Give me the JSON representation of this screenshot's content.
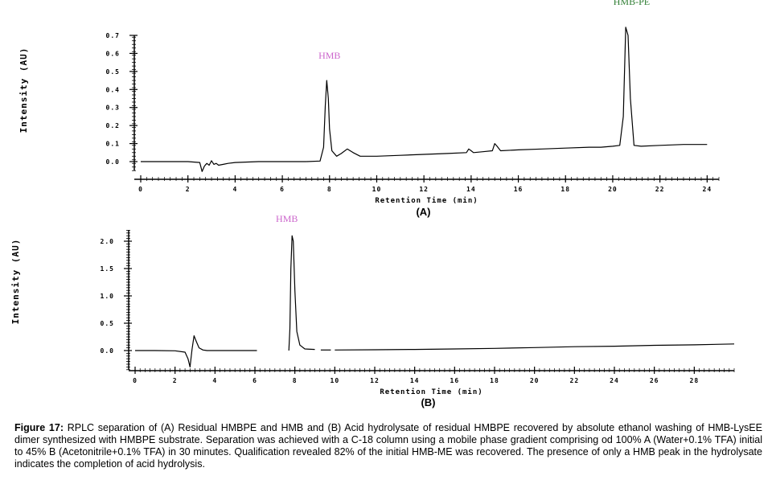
{
  "chart_data": [
    {
      "type": "line",
      "panel_label": "(A)",
      "xlabel": "Retention Time (min)",
      "ylabel": "Intensity (AU)",
      "xlim": [
        0,
        24.5
      ],
      "ylim": [
        -0.05,
        0.8
      ],
      "xticks": [
        0,
        2,
        4,
        6,
        8,
        10,
        12,
        14,
        16,
        18,
        20,
        22,
        24
      ],
      "yticks": [
        0.0,
        0.1,
        0.2,
        0.3,
        0.4,
        0.5,
        0.6,
        0.7
      ],
      "ytick_labels": [
        "0.0",
        "0.1",
        "0.2",
        "0.3",
        "0.4",
        "0.5",
        "0.6",
        "0.7"
      ],
      "line_color": "#000000",
      "series": [
        {
          "x": [
            0,
            1,
            2,
            2.5,
            2.6,
            2.7,
            2.8,
            2.9,
            3.0,
            3.1,
            3.2,
            3.3,
            3.5,
            3.7,
            4,
            5,
            6,
            7,
            7.6,
            7.75,
            7.82,
            7.88,
            7.95,
            8.0,
            8.1,
            8.3,
            8.5,
            8.75,
            9.0,
            9.3,
            10,
            11,
            12,
            13,
            13.8,
            13.9,
            14.0,
            14.1,
            14.5,
            14.9,
            15.0,
            15.1,
            15.25,
            16,
            17,
            18,
            19,
            19.5,
            20,
            20.3,
            20.45,
            20.55,
            20.65,
            20.75,
            20.9,
            21.2,
            22,
            23,
            24
          ],
          "y": [
            0.0,
            0.0,
            0.0,
            -0.005,
            -0.055,
            -0.025,
            -0.01,
            -0.02,
            0.005,
            -0.015,
            -0.01,
            -0.02,
            -0.015,
            -0.01,
            -0.005,
            0.0,
            0.0,
            0.0,
            0.003,
            0.08,
            0.31,
            0.45,
            0.35,
            0.18,
            0.06,
            0.03,
            0.045,
            0.07,
            0.05,
            0.03,
            0.03,
            0.035,
            0.04,
            0.045,
            0.05,
            0.07,
            0.06,
            0.05,
            0.055,
            0.06,
            0.1,
            0.085,
            0.06,
            0.065,
            0.07,
            0.075,
            0.08,
            0.08,
            0.085,
            0.09,
            0.25,
            0.745,
            0.7,
            0.35,
            0.09,
            0.085,
            0.09,
            0.095,
            0.095
          ]
        }
      ],
      "annotations": [
        {
          "text": "HMB",
          "x": 8.0,
          "y": 0.57,
          "color": "#cc66cc"
        },
        {
          "text": "HMB-PE",
          "x": 20.8,
          "y": 0.87,
          "color": "#2e7d32"
        }
      ]
    },
    {
      "type": "line",
      "panel_label": "(B)",
      "xlabel": "Retention Time (min)",
      "ylabel": "Intensity (AU)",
      "xlim": [
        0,
        30
      ],
      "ylim": [
        -0.35,
        2.3
      ],
      "xticks": [
        0,
        2,
        4,
        6,
        8,
        10,
        12,
        14,
        16,
        18,
        20,
        22,
        24,
        26,
        28
      ],
      "yticks": [
        0.0,
        0.5,
        1.0,
        1.5,
        2.0
      ],
      "ytick_labels": [
        "0.0",
        "0.5",
        "1.0",
        "1.5",
        "2.0"
      ],
      "line_color": "#000000",
      "series": [
        {
          "x": [
            0,
            1,
            2,
            2.5,
            2.65,
            2.75,
            2.85,
            2.95,
            3.05,
            3.2,
            3.4,
            3.6,
            4,
            5,
            6.1
          ],
          "y": [
            0.0,
            0.0,
            -0.005,
            -0.03,
            -0.15,
            -0.3,
            0.02,
            0.27,
            0.18,
            0.05,
            0.01,
            0.0,
            0.0,
            0.0,
            0.0
          ]
        },
        {
          "x": [
            7.7,
            7.75,
            7.8,
            7.86,
            7.92,
            8.0,
            8.1,
            8.25,
            8.5,
            9.0
          ],
          "y": [
            0.0,
            0.4,
            1.5,
            2.1,
            2.0,
            1.1,
            0.35,
            0.1,
            0.03,
            0.02
          ]
        },
        {
          "x": [
            9.3,
            9.8
          ],
          "y": [
            0.01,
            0.01
          ]
        },
        {
          "x": [
            10,
            12,
            14,
            16,
            18,
            20,
            22,
            24,
            26,
            28,
            30
          ],
          "y": [
            0.01,
            0.015,
            0.02,
            0.03,
            0.04,
            0.055,
            0.07,
            0.08,
            0.095,
            0.105,
            0.12
          ]
        }
      ],
      "annotations": [
        {
          "text": "HMB",
          "x": 7.6,
          "y": 2.35,
          "color": "#cc66cc"
        }
      ]
    }
  ],
  "caption": {
    "label": "Figure 17:",
    "text": " RPLC separation of (A) Residual HMBPE and HMB and (B) Acid hydrolysate of residual HMBPE recovered by absolute ethanol washing of HMB-LysEE dimer synthesized with HMBPE substrate. Separation was achieved with a C-18 column using a mobile phase gradient comprising od 100% A (Water+0.1% TFA) initial to 45% B (Acetonitrile+0.1% TFA) in 30 minutes. Qualification revealed 82% of the initial HMB-ME was recovered. The presence of only a HMB peak in the hydrolysate indicates the completion of acid hydrolysis."
  }
}
